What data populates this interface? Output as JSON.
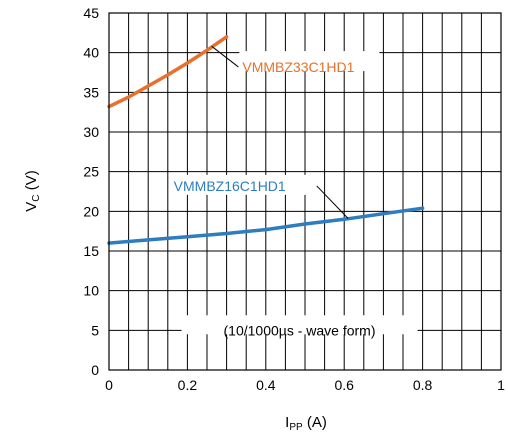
{
  "chart_data": {
    "type": "line",
    "xlabel": {
      "main": "I",
      "sub": "PP",
      "unit": " (A)"
    },
    "ylabel": {
      "main": "V",
      "sub": "C",
      "unit": " (V)"
    },
    "xlim": [
      0,
      1
    ],
    "ylim": [
      0,
      45
    ],
    "x_ticks": [
      0,
      0.2,
      0.4,
      0.6,
      0.8,
      1
    ],
    "x_tick_labels": [
      "0",
      "0.2",
      "0.4",
      "0.6",
      "0.8",
      "1"
    ],
    "y_ticks": [
      0,
      5,
      10,
      15,
      20,
      25,
      30,
      35,
      40,
      45
    ],
    "y_tick_labels": [
      "0",
      "5",
      "10",
      "15",
      "20",
      "25",
      "30",
      "35",
      "40",
      "45"
    ],
    "grid": true,
    "series": [
      {
        "name": "VMMBZ33C1HD1",
        "color": "#E8702A",
        "x": [
          0,
          0.05,
          0.1,
          0.15,
          0.2,
          0.25,
          0.3
        ],
        "y": [
          33.2,
          34.4,
          35.8,
          37.2,
          38.7,
          40.3,
          42.0
        ]
      },
      {
        "name": "VMMBZ16C1HD1",
        "color": "#2E7DBE",
        "x": [
          0,
          0.1,
          0.2,
          0.3,
          0.4,
          0.5,
          0.6,
          0.7,
          0.8
        ],
        "y": [
          16.0,
          16.4,
          16.8,
          17.2,
          17.7,
          18.4,
          19.0,
          19.7,
          20.4
        ]
      }
    ],
    "annotations": [
      {
        "text": "VMMBZ33C1HD1",
        "color": "#E8702A"
      },
      {
        "text": "VMMBZ16C1HD1",
        "color": "#2E7DBE"
      },
      {
        "text": "(10/1000µs - wave form)",
        "color": "#000000"
      }
    ]
  }
}
